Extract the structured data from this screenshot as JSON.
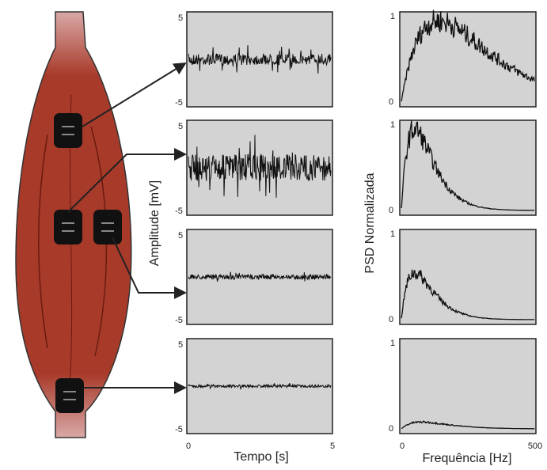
{
  "time_panels": {
    "y_label": "Amplitude [mV]",
    "x_label": "Tempo [s]",
    "x_ticks": [
      "0",
      "5"
    ],
    "panels": [
      {
        "y_ticks": [
          "5",
          "-5"
        ]
      },
      {
        "y_ticks": [
          "5",
          "-5"
        ]
      },
      {
        "y_ticks": [
          "5",
          "-5"
        ]
      },
      {
        "y_ticks": [
          "5",
          "-5"
        ]
      }
    ]
  },
  "psd_panels": {
    "y_label": "PSD Normalizada",
    "x_label": "Frequência [Hz]",
    "x_ticks": [
      "0",
      "500"
    ],
    "panels": [
      {
        "y_ticks": [
          "1",
          "0"
        ]
      },
      {
        "y_ticks": [
          "1",
          "0"
        ]
      },
      {
        "y_ticks": [
          "1",
          "0"
        ]
      },
      {
        "y_ticks": [
          "1",
          "0"
        ]
      }
    ]
  }
}
